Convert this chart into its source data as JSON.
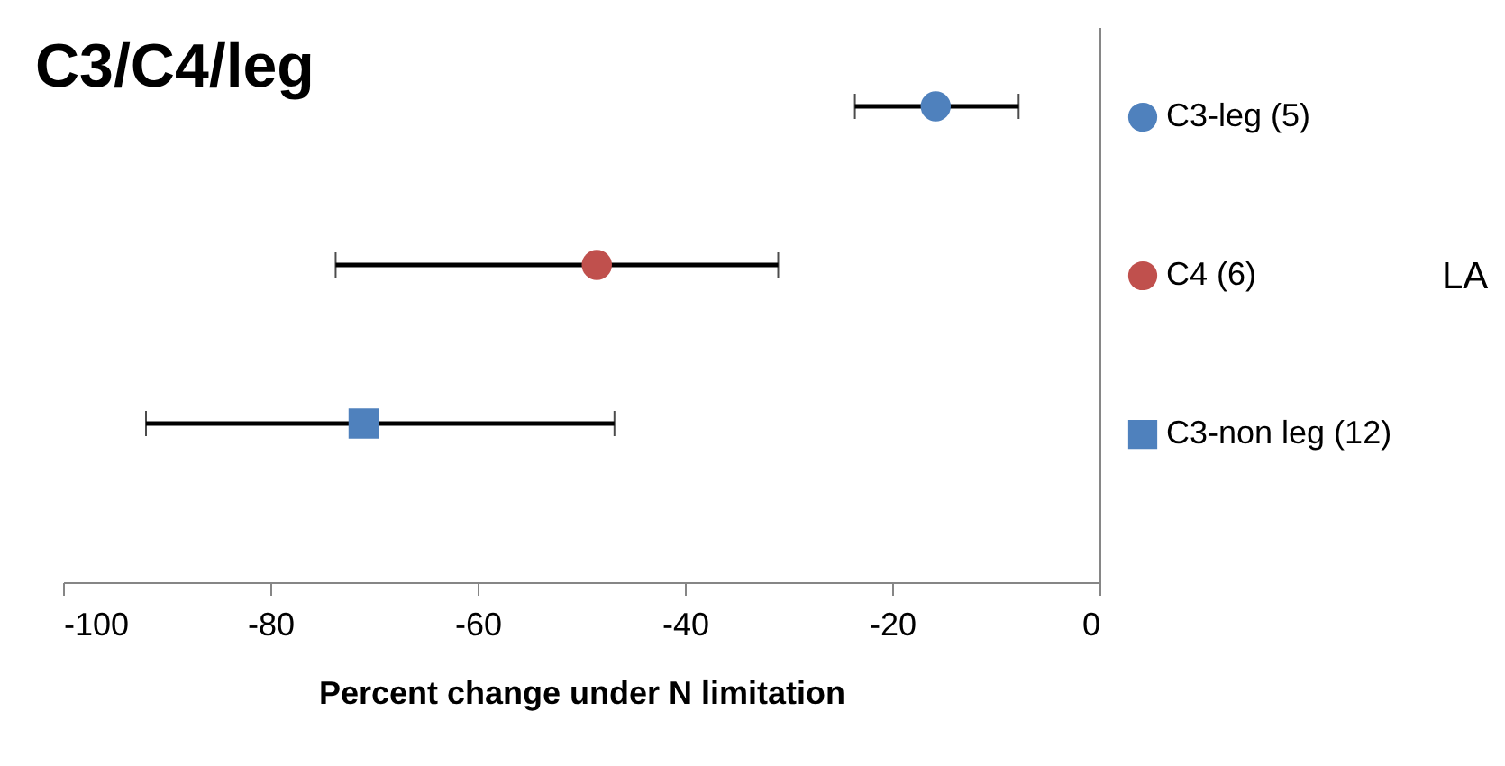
{
  "chart_data": {
    "type": "scatter",
    "title": "C3/C4/leg",
    "xlabel": "Percent change under N limitation",
    "orientation": "horizontal",
    "categories": [
      null,
      null,
      null
    ],
    "series": [
      {
        "name": "C3-leg (5)",
        "color": "#4f81bd",
        "marker": "circle",
        "values": [
          -15.8,
          null,
          null
        ],
        "errors": [
          [
            -23.6,
            -7.8
          ],
          null,
          null
        ]
      },
      {
        "name": "C4 (6)",
        "color": "#c0504d",
        "marker": "circle",
        "values": [
          null,
          -48.5,
          null
        ],
        "errors": [
          null,
          [
            -73.7,
            -31
          ],
          null
        ]
      },
      {
        "name": "C3-non leg (12)",
        "color": "#4f81bd",
        "marker": "square",
        "values": [
          null,
          null,
          -71
        ],
        "errors": [
          null,
          null,
          [
            -92,
            -46.8
          ]
        ]
      }
    ],
    "xlim": [
      -100,
      0
    ],
    "xticks": [
      -100,
      -80,
      -60,
      -40,
      -20,
      0
    ],
    "legend": "right",
    "tick_labels": "x",
    "annotations": [
      "LA"
    ]
  }
}
